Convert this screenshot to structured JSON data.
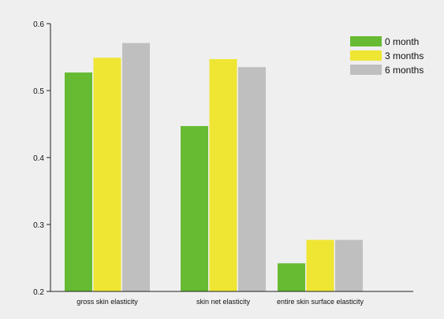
{
  "chart_data": {
    "type": "bar",
    "categories": [
      "gross skin elasticity",
      "skin net elasticity",
      "entire skin surface elasticity"
    ],
    "series": [
      {
        "name": "0 month",
        "values": [
          0.527,
          0.447,
          0.242
        ]
      },
      {
        "name": "3 months",
        "values": [
          0.549,
          0.547,
          0.277
        ]
      },
      {
        "name": "6 months",
        "values": [
          0.571,
          0.535,
          0.277
        ]
      }
    ],
    "ylim": [
      0.2,
      0.6
    ],
    "yticks": [
      0.2,
      0.3,
      0.4,
      0.5,
      0.6
    ],
    "ytick_labels": [
      "0.2",
      "0.3",
      "0.4",
      "0.5",
      "0.6"
    ],
    "legend_position": "top-right",
    "grid": false,
    "colors": [
      "#66bb33",
      "#eee633",
      "#bfbfbf"
    ]
  }
}
